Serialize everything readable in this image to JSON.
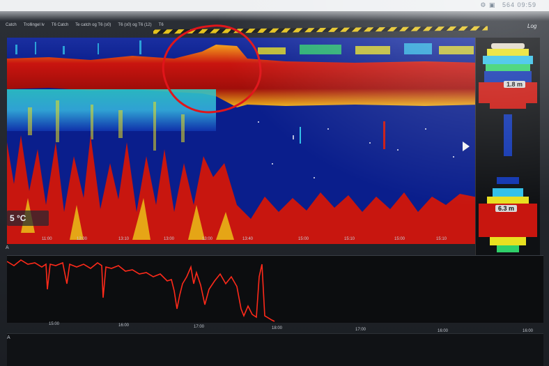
{
  "topbar": {
    "icons": [
      "settings-icon",
      "toolbar-icon"
    ],
    "text": "564 09:59"
  },
  "tabs": [
    "Catch",
    "Trollingel lv",
    "T6 Catch",
    "Te catch og T6 (s0)",
    "T6 (s0) og T6 (12)",
    "T6"
  ],
  "log_label": "Log",
  "echogram": {
    "temperature": "5 °C",
    "depth_top": "1.8 m",
    "depth_bottom": "6.3 m"
  },
  "time_ticks": [
    "11:00",
    "12:00",
    "13:10",
    "13:00",
    "13:00",
    "13:40",
    "15:00",
    "15:10",
    "15:00",
    "15:10",
    "15:00"
  ],
  "lower_panel": {
    "label": "A"
  },
  "lower_ticks": [
    "15:00",
    "16:00",
    "17:00",
    "18:00",
    "17:00",
    "16:00",
    "16:00",
    "18:00"
  ],
  "bottom_label": "A",
  "colors": {
    "deep_blue": "#0a1e8c",
    "red": "#c8160f",
    "yellow": "#f2e21a",
    "cyan": "#38c8e8",
    "trace": "#ff2a1a"
  }
}
